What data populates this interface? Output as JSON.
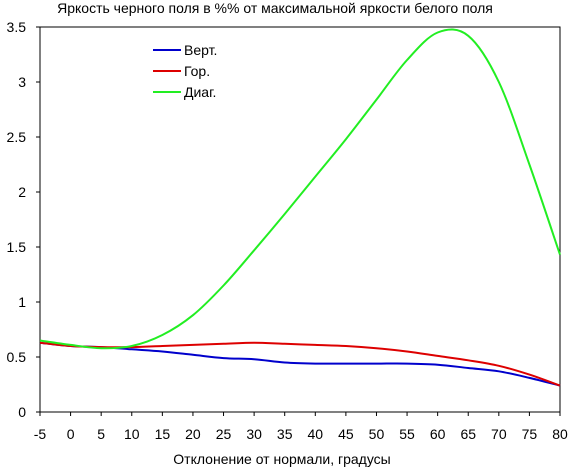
{
  "chart_data": {
    "type": "line",
    "title": "Яркость черного поля в %% от максимальной яркости белого поля",
    "xlabel": "Отклонение от нормали, градусы",
    "ylabel": "",
    "xlim": [
      -5,
      80
    ],
    "ylim": [
      0,
      3.5
    ],
    "x_ticks": [
      "-5",
      "0",
      "5",
      "10",
      "15",
      "20",
      "25",
      "30",
      "35",
      "40",
      "45",
      "50",
      "55",
      "60",
      "65",
      "70",
      "75",
      "80"
    ],
    "y_ticks": [
      "0",
      "0.5",
      "1",
      "1.5",
      "2",
      "2.5",
      "3",
      "3.5"
    ],
    "grid": false,
    "legend_position": "top-left",
    "x": [
      -5,
      0,
      5,
      10,
      15,
      20,
      25,
      30,
      35,
      40,
      45,
      50,
      55,
      60,
      65,
      70,
      75,
      80
    ],
    "series": [
      {
        "name": "Верт.",
        "color": "#0000cc",
        "values": [
          0.63,
          0.6,
          0.59,
          0.57,
          0.55,
          0.52,
          0.49,
          0.48,
          0.45,
          0.44,
          0.44,
          0.44,
          0.44,
          0.43,
          0.4,
          0.37,
          0.31,
          0.24
        ]
      },
      {
        "name": "Гор.",
        "color": "#dd0000",
        "values": [
          0.63,
          0.6,
          0.59,
          0.59,
          0.6,
          0.61,
          0.62,
          0.63,
          0.62,
          0.61,
          0.6,
          0.58,
          0.55,
          0.51,
          0.47,
          0.42,
          0.34,
          0.24
        ]
      },
      {
        "name": "Диаг.",
        "color": "#22ee22",
        "values": [
          0.65,
          0.61,
          0.58,
          0.6,
          0.7,
          0.88,
          1.15,
          1.47,
          1.8,
          2.14,
          2.48,
          2.84,
          3.2,
          3.45,
          3.42,
          3.0,
          2.25,
          1.43
        ]
      }
    ]
  }
}
